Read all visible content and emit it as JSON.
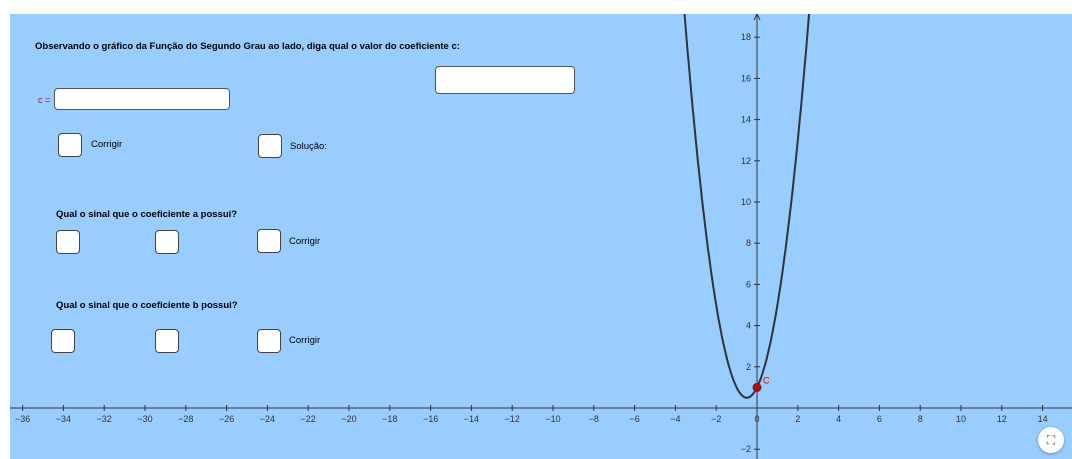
{
  "question_c": "Observando o gráfico da Função do Segundo Grau ao lado, diga qual o valor do coeficiente c:",
  "c_label": "c =",
  "corrigir_label": "Corrigir",
  "solucao_label": "Solução:",
  "question_a": "Qual o sinal que o coeficiente a possui?",
  "question_b": "Qual o sinal que o coeficiente b possui?",
  "point_label": "C",
  "colors": {
    "background": "#99ccff",
    "curve": "#333333",
    "point": "#cc0000"
  },
  "graph": {
    "x_range": [
      -37,
      15
    ],
    "y_range": [
      -2.5,
      19
    ],
    "x_ticks": [
      -36,
      -34,
      -32,
      -30,
      -28,
      -26,
      -24,
      -22,
      -20,
      -18,
      -16,
      -14,
      -12,
      -10,
      -8,
      -6,
      -4,
      -2,
      0,
      2,
      4,
      6,
      8,
      10,
      12,
      14
    ],
    "y_ticks": [
      -2,
      2,
      4,
      6,
      8,
      10,
      12,
      14,
      16,
      18
    ],
    "function": {
      "a": 2,
      "b": 2,
      "c": 1
    },
    "point": {
      "x": 0,
      "y": 1
    }
  },
  "icons": {
    "fullscreen": "fullscreen-icon"
  }
}
